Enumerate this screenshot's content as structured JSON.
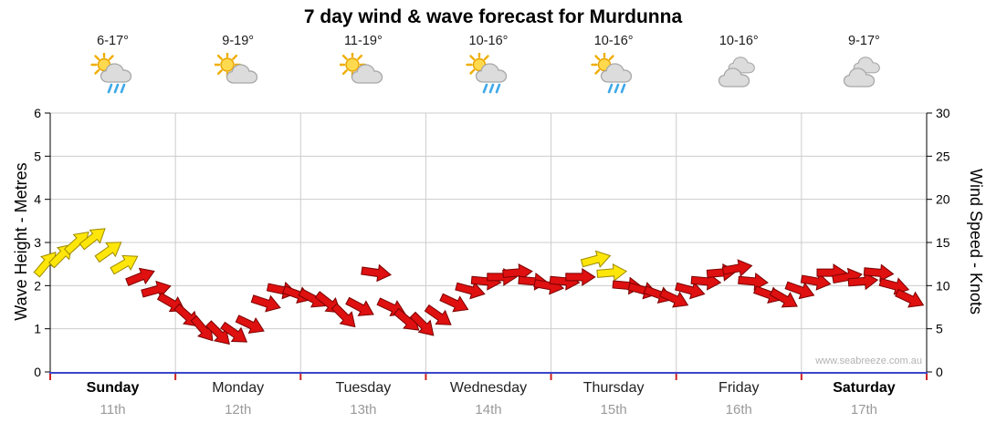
{
  "title": "7 day wind & wave forecast for Murdunna",
  "watermark": "www.seabreeze.com.au",
  "left_axis": {
    "label": "Wave Height - Metres",
    "ticks": [
      0,
      1,
      2,
      3,
      4,
      5,
      6
    ]
  },
  "right_axis": {
    "label": "Wind Speed - Knots",
    "ticks": [
      0,
      5,
      10,
      15,
      20,
      25,
      30
    ]
  },
  "days": [
    {
      "name": "Sunday",
      "date": "11th",
      "temp": "6-17°",
      "icon": "sun-cloud-rain",
      "weekend": true
    },
    {
      "name": "Monday",
      "date": "12th",
      "temp": "9-19°",
      "icon": "sun-cloud",
      "weekend": false
    },
    {
      "name": "Tuesday",
      "date": "13th",
      "temp": "11-19°",
      "icon": "sun-cloud",
      "weekend": false
    },
    {
      "name": "Wednesday",
      "date": "14th",
      "temp": "10-16°",
      "icon": "sun-cloud-rain",
      "weekend": false
    },
    {
      "name": "Thursday",
      "date": "15th",
      "temp": "10-16°",
      "icon": "sun-cloud-rain",
      "weekend": false
    },
    {
      "name": "Friday",
      "date": "16th",
      "temp": "10-16°",
      "icon": "cloud",
      "weekend": false
    },
    {
      "name": "Saturday",
      "date": "17th",
      "temp": "9-17°",
      "icon": "cloud",
      "weekend": true
    }
  ],
  "chart_data": {
    "type": "scatter",
    "subtype": "wind-arrow-forecast",
    "title": "7 day wind & wave forecast for Murdunna",
    "categories": [
      "Sunday 11th",
      "Monday 12th",
      "Tuesday 13th",
      "Wednesday 14th",
      "Thursday 15th",
      "Friday 16th",
      "Saturday 17th"
    ],
    "points_per_day": 8,
    "series": [
      {
        "name": "Wind Speed",
        "unit": "knots",
        "values": [
          12.5,
          13.5,
          15,
          15.5,
          14,
          12.5,
          11,
          9.5,
          8,
          6.5,
          5,
          4.5,
          4.5,
          5.5,
          8,
          9.5,
          9,
          8.5,
          8,
          6.5,
          7.5,
          11.5,
          7.5,
          6,
          5.5,
          6.5,
          8,
          9.5,
          10.5,
          11,
          11.5,
          10.5,
          10,
          10.5,
          11,
          13,
          11.5,
          10,
          9.5,
          9,
          8.5,
          9.5,
          10.5,
          11.5,
          12,
          10.5,
          9,
          8.5,
          9.5,
          10.5,
          11.5,
          11,
          10.5,
          11.5,
          10,
          8.5
        ]
      }
    ],
    "directions_deg": [
      -50,
      -45,
      -42,
      -38,
      -35,
      -30,
      -22,
      -15,
      30,
      42,
      50,
      45,
      35,
      25,
      18,
      12,
      20,
      28,
      38,
      45,
      28,
      8,
      25,
      40,
      45,
      35,
      25,
      15,
      5,
      0,
      -5,
      5,
      10,
      5,
      0,
      -15,
      -5,
      5,
      15,
      20,
      25,
      15,
      5,
      -5,
      -10,
      5,
      20,
      30,
      20,
      10,
      0,
      -10,
      -5,
      5,
      15,
      25
    ],
    "yellow_point_indices": [
      0,
      1,
      2,
      3,
      4,
      5,
      35,
      36
    ],
    "colors": {
      "strong": "#DF1010",
      "light": "#FFE60A"
    },
    "ylabel_left": "Wave Height - Metres",
    "ylim_left": [
      0,
      6
    ],
    "ylabel_right": "Wind Speed - Knots",
    "ylim_right": [
      0,
      30
    ],
    "grid": true,
    "legend": false
  }
}
